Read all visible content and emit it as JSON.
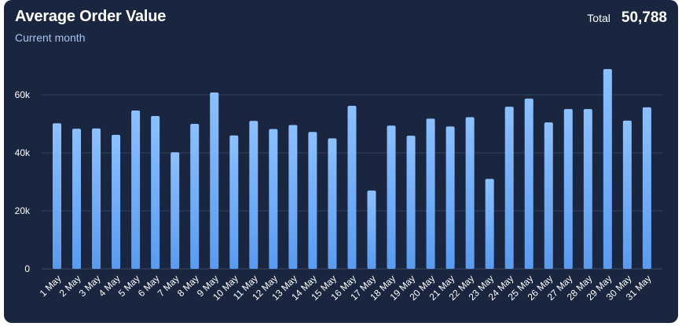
{
  "header": {
    "title": "Average Order Value",
    "subtitle": "Current month",
    "total_label": "Total",
    "total_value": "50,788"
  },
  "colors": {
    "background": "#1a2540",
    "bar_top": "#8cc0ff",
    "bar_bottom": "#5a9bf0",
    "grid": "#34425f"
  },
  "chart_data": {
    "type": "bar",
    "title": "Average Order Value",
    "subtitle": "Current month",
    "xlabel": "",
    "ylabel": "",
    "ylim": [
      0,
      70000
    ],
    "yticks": [
      0,
      20000,
      40000,
      60000
    ],
    "ytick_labels": [
      "0",
      "20k",
      "40k",
      "60k"
    ],
    "grid": true,
    "categories": [
      "1 May",
      "2 May",
      "3 May",
      "4 May",
      "5 May",
      "6 May",
      "7 May",
      "8 May",
      "9 May",
      "10 May",
      "11 May",
      "12 May",
      "13 May",
      "14 May",
      "15 May",
      "16 May",
      "17 May",
      "18 May",
      "19 May",
      "20 May",
      "21 May",
      "22 May",
      "23 May",
      "24 May",
      "25 May",
      "26 May",
      "27 May",
      "28 May",
      "29 May",
      "30 May",
      "31 May"
    ],
    "values": [
      50200,
      48300,
      48400,
      46200,
      54600,
      52700,
      40200,
      50000,
      60800,
      46000,
      51000,
      48200,
      49600,
      47200,
      45000,
      56200,
      27000,
      49400,
      45900,
      51800,
      49100,
      52300,
      31000,
      55900,
      58700,
      50500,
      55100,
      55100,
      68900,
      51100,
      55700
    ]
  }
}
